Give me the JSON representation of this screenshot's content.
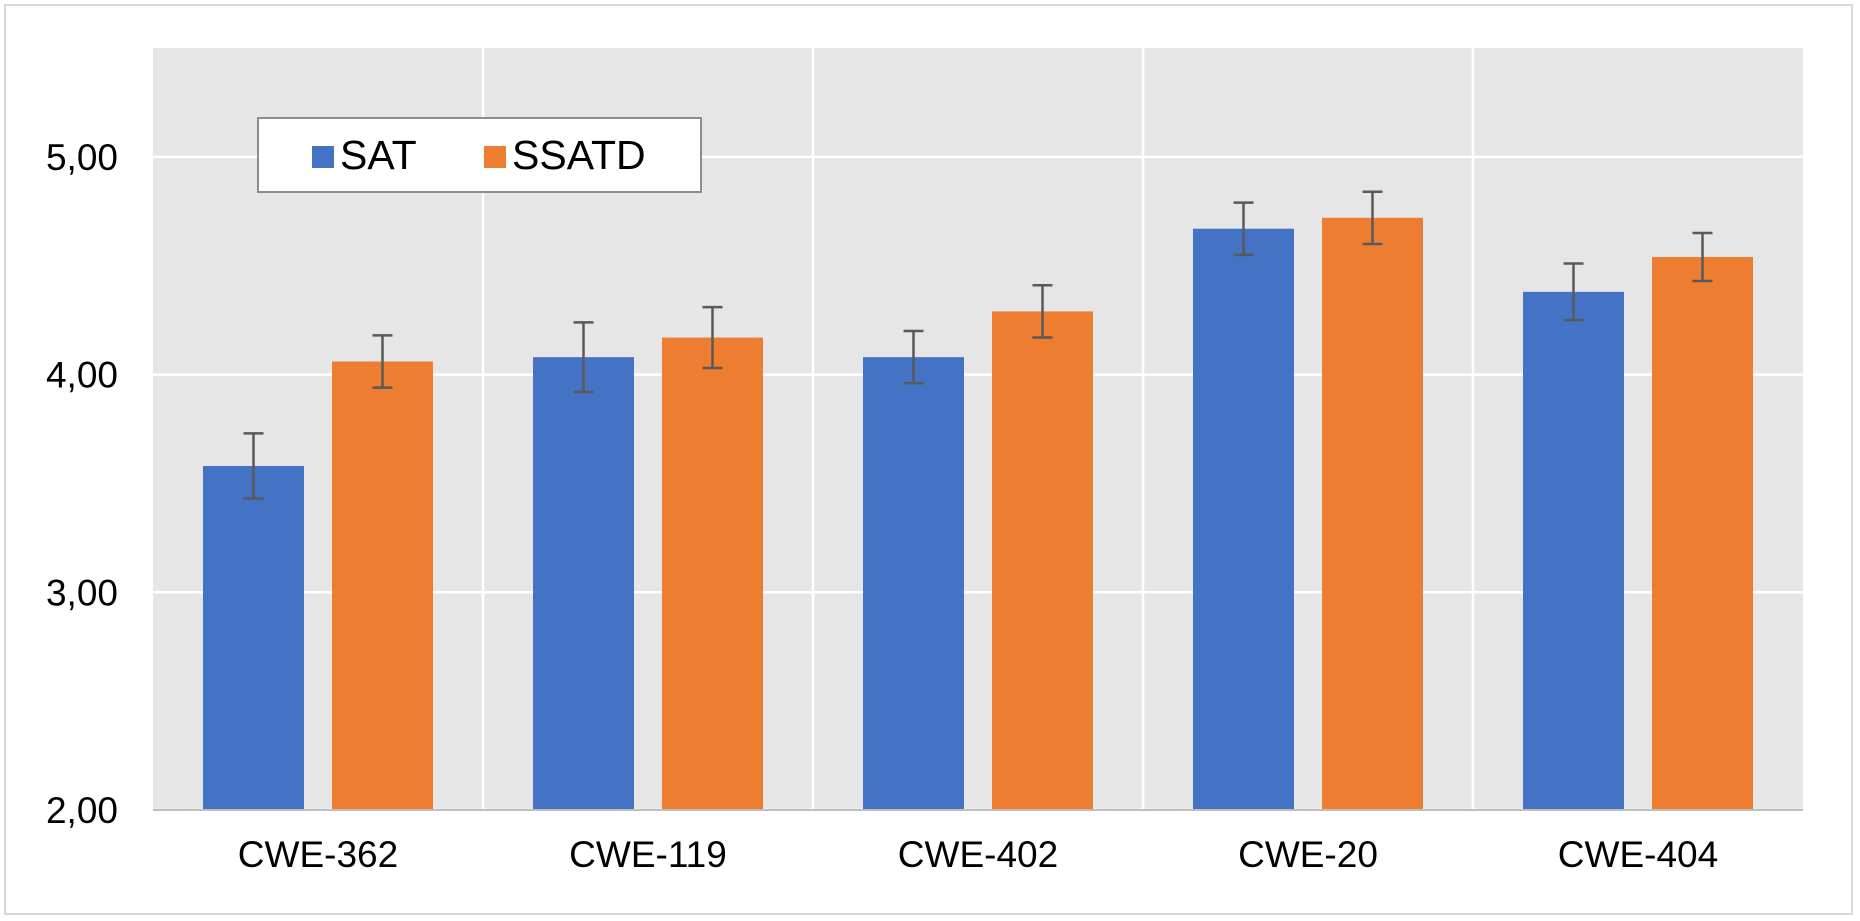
{
  "chart_data": {
    "type": "bar",
    "categories": [
      "CWE-362",
      "CWE-119",
      "CWE-402",
      "CWE-20",
      "CWE-404"
    ],
    "series": [
      {
        "name": "SAT",
        "color": "#4472c4",
        "values": [
          3.58,
          4.08,
          4.08,
          4.67,
          4.38
        ],
        "error": [
          0.15,
          0.16,
          0.12,
          0.12,
          0.13
        ]
      },
      {
        "name": "SSATD",
        "color": "#ed7d31",
        "values": [
          4.06,
          4.17,
          4.29,
          4.72,
          4.54
        ],
        "error": [
          0.12,
          0.14,
          0.12,
          0.12,
          0.11
        ]
      }
    ],
    "yticks": [
      "2,00",
      "3,00",
      "4,00",
      "5,00"
    ],
    "ylim": [
      2.0,
      5.5
    ],
    "grid": true,
    "legend_position": "top-left",
    "plot_background": "#e6e6e6",
    "gridline_color": "#ffffff",
    "error_bar_color": "#595959"
  }
}
